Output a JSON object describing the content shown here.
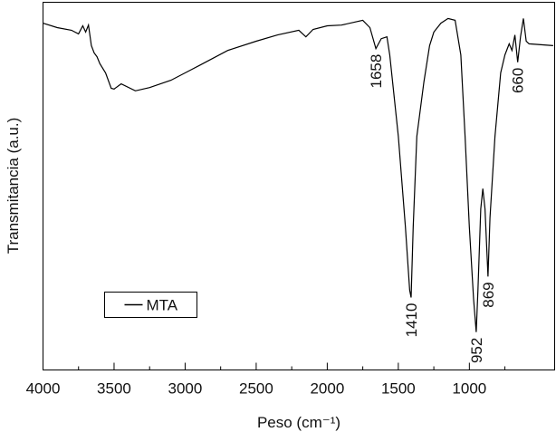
{
  "chart_data": {
    "type": "line",
    "x_label": "Peso (cm⁻¹)",
    "y_label": "Transmitancia (a.u.)",
    "xlim": [
      4000,
      400
    ],
    "xticks": [
      4000,
      3500,
      3000,
      2500,
      2000,
      1500,
      1000
    ],
    "xminorticks": [
      3750,
      3250,
      2750,
      2250,
      1750,
      1250,
      750
    ],
    "ylim": [
      0,
      100
    ],
    "legend": "lower left",
    "series": [
      {
        "name": "MTA",
        "color": "#000000",
        "x": [
          4000,
          3900,
          3800,
          3750,
          3720,
          3700,
          3680,
          3660,
          3640,
          3620,
          3600,
          3560,
          3520,
          3500,
          3450,
          3350,
          3250,
          3100,
          2950,
          2900,
          2700,
          2500,
          2350,
          2200,
          2150,
          2100,
          2000,
          1900,
          1750,
          1700,
          1658,
          1620,
          1580,
          1560,
          1500,
          1450,
          1420,
          1410,
          1395,
          1370,
          1320,
          1280,
          1250,
          1200,
          1150,
          1100,
          1060,
          1030,
          1000,
          970,
          952,
          940,
          920,
          905,
          890,
          869,
          855,
          820,
          780,
          750,
          720,
          700,
          680,
          660,
          640,
          620,
          600,
          580,
          410
        ],
        "values": [
          94.3,
          93.1,
          92.4,
          91.4,
          93.6,
          91.9,
          93.8,
          88.2,
          86.2,
          85.2,
          83.3,
          80.8,
          76.6,
          76.4,
          77.8,
          75.9,
          76.8,
          78.8,
          81.8,
          82.8,
          86.9,
          89.4,
          91.1,
          92.4,
          90.6,
          92.6,
          93.6,
          93.8,
          95.1,
          93.1,
          87.4,
          90.1,
          90.6,
          85.7,
          63.5,
          38.9,
          21.7,
          19.7,
          38.9,
          63.5,
          78.3,
          88.2,
          91.9,
          94.3,
          95.6,
          95.1,
          85.7,
          63.5,
          38.9,
          19.2,
          10.3,
          21.7,
          43.8,
          49.3,
          43.8,
          25.4,
          41.4,
          63.5,
          80.8,
          85.7,
          88.7,
          86.9,
          91.1,
          83.7,
          90.6,
          95.6,
          89.4,
          88.7,
          88.2
        ]
      }
    ],
    "annotations": [
      {
        "text": "1658",
        "x": 1658
      },
      {
        "text": "1410",
        "x": 1410
      },
      {
        "text": "952",
        "x": 952
      },
      {
        "text": "869",
        "x": 869
      },
      {
        "text": "660",
        "x": 660
      }
    ]
  }
}
